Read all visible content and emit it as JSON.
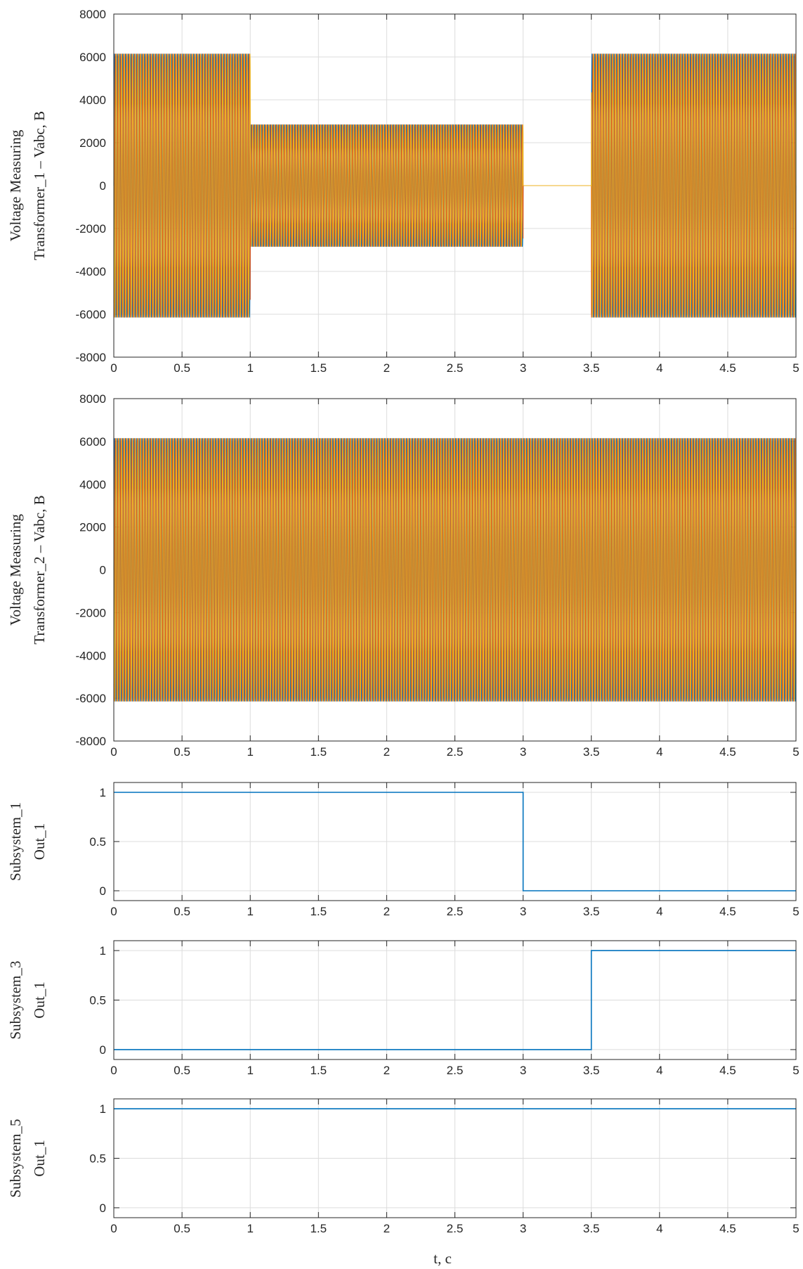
{
  "colors": {
    "phase_a": "#0072bd",
    "phase_b": "#d95319",
    "phase_c": "#edb120",
    "step": "#0072bd",
    "axes": "#262626",
    "grid": "#dcdcdc"
  },
  "figure": {
    "xlabel": "t, c"
  },
  "chart_data": [
    {
      "type": "line",
      "ylabel_lines": [
        "Voltage Measuring",
        "Transformer_1 – Vabc, B"
      ],
      "xlim": [
        0,
        5
      ],
      "ylim": [
        -8000,
        8000
      ],
      "xticks": [
        "0",
        "0.5",
        "1",
        "1.5",
        "2",
        "2.5",
        "3",
        "3.5",
        "4",
        "4.5",
        "5"
      ],
      "yticks": [
        "8000",
        "6000",
        "4000",
        "2000",
        "0",
        "-2000",
        "-4000",
        "-6000",
        "-8000"
      ],
      "grid": true,
      "envelope": [
        {
          "t0": 0,
          "t1": 1,
          "amplitude": 6150
        },
        {
          "t0": 1,
          "t1": 3,
          "amplitude": 2850
        },
        {
          "t0": 3,
          "t1": 3.5,
          "amplitude": 0
        },
        {
          "t0": 3.5,
          "t1": 5,
          "amplitude": 6150
        }
      ],
      "frequency_hz": 50,
      "series": [
        {
          "phase_deg": 0,
          "color_key": "phase_a"
        },
        {
          "phase_deg": -120,
          "color_key": "phase_b"
        },
        {
          "phase_deg": 120,
          "color_key": "phase_c"
        }
      ]
    },
    {
      "type": "line",
      "ylabel_lines": [
        "Voltage Measuring",
        "Transformer_2 – Vabc, B"
      ],
      "xlim": [
        0,
        5
      ],
      "ylim": [
        -8000,
        8000
      ],
      "xticks": [
        "0",
        "0.5",
        "1",
        "1.5",
        "2",
        "2.5",
        "3",
        "3.5",
        "4",
        "4.5",
        "5"
      ],
      "yticks": [
        "8000",
        "6000",
        "4000",
        "2000",
        "0",
        "-2000",
        "-4000",
        "-6000",
        "-8000"
      ],
      "grid": true,
      "envelope": [
        {
          "t0": 0,
          "t1": 5,
          "amplitude": 6150
        }
      ],
      "frequency_hz": 50,
      "series": [
        {
          "phase_deg": 0,
          "color_key": "phase_a"
        },
        {
          "phase_deg": -120,
          "color_key": "phase_b"
        },
        {
          "phase_deg": 120,
          "color_key": "phase_c"
        }
      ]
    },
    {
      "type": "line",
      "ylabel_lines": [
        "Subsystem_1",
        "Out_1"
      ],
      "xlim": [
        0,
        5
      ],
      "ylim": [
        -0.1,
        1.1
      ],
      "xticks": [
        "0",
        "0.5",
        "1",
        "1.5",
        "2",
        "2.5",
        "3",
        "3.5",
        "4",
        "4.5",
        "5"
      ],
      "yticks": [
        "1",
        "0.5",
        "0"
      ],
      "grid": true,
      "x": [
        0,
        3,
        3,
        5
      ],
      "y": [
        1,
        1,
        0,
        0
      ]
    },
    {
      "type": "line",
      "ylabel_lines": [
        "Subsystem_3",
        "Out_1"
      ],
      "xlim": [
        0,
        5
      ],
      "ylim": [
        -0.1,
        1.1
      ],
      "xticks": [
        "0",
        "0.5",
        "1",
        "1.5",
        "2",
        "2.5",
        "3",
        "3.5",
        "4",
        "4.5",
        "5"
      ],
      "yticks": [
        "1",
        "0.5",
        "0"
      ],
      "grid": true,
      "x": [
        0,
        3.5,
        3.5,
        5
      ],
      "y": [
        0,
        0,
        1,
        1
      ]
    },
    {
      "type": "line",
      "ylabel_lines": [
        "Subsystem_5",
        "Out_1"
      ],
      "xlim": [
        0,
        5
      ],
      "ylim": [
        -0.1,
        1.1
      ],
      "xticks": [
        "0",
        "0.5",
        "1",
        "1.5",
        "2",
        "2.5",
        "3",
        "3.5",
        "4",
        "4.5",
        "5"
      ],
      "yticks": [
        "1",
        "0.5",
        "0"
      ],
      "grid": true,
      "x": [
        0,
        5
      ],
      "y": [
        1,
        1
      ]
    }
  ]
}
